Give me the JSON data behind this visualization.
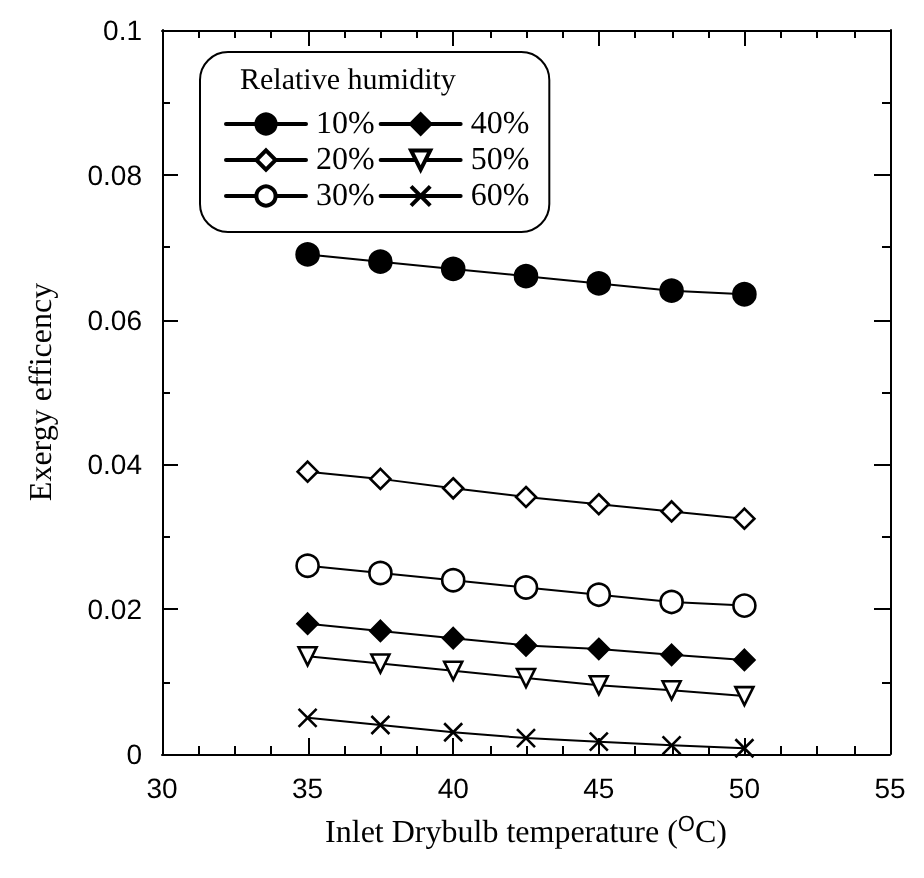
{
  "chart_data": {
    "type": "line",
    "xlabel": "Inlet Drybulb temperature ($^{O}$C)",
    "ylabel": "Exergy efficency",
    "legend_title": "Relative humidity",
    "x": [
      35,
      37.5,
      40,
      42.5,
      45,
      47.5,
      50
    ],
    "series": [
      {
        "name": "10%",
        "color": "#000000",
        "marker": "circle",
        "values": [
          0.069,
          0.068,
          0.067,
          0.066,
          0.065,
          0.064,
          0.0635
        ]
      },
      {
        "name": "20%",
        "color": "#000000",
        "marker": "diamond_open",
        "values": [
          0.039,
          0.038,
          0.0367,
          0.0355,
          0.0345,
          0.0335,
          0.0325
        ]
      },
      {
        "name": "30%",
        "color": "#000000",
        "marker": "circle_open",
        "values": [
          0.026,
          0.025,
          0.024,
          0.023,
          0.022,
          0.021,
          0.0205
        ]
      },
      {
        "name": "40%",
        "color": "#000000",
        "marker": "diamond",
        "values": [
          0.018,
          0.017,
          0.016,
          0.015,
          0.0145,
          0.0137,
          0.013
        ]
      },
      {
        "name": "50%",
        "color": "#000000",
        "marker": "triangle_down_open",
        "values": [
          0.0135,
          0.0125,
          0.0115,
          0.0105,
          0.0095,
          0.0088,
          0.008
        ]
      },
      {
        "name": "60%",
        "color": "#000000",
        "marker": "cross",
        "values": [
          0.005,
          0.004,
          0.003,
          0.0022,
          0.0017,
          0.0012,
          0.0008
        ]
      }
    ],
    "xlim": [
      30,
      55
    ],
    "xticks": [
      30,
      35,
      40,
      45,
      50,
      55
    ],
    "ylim": [
      0,
      0.1
    ],
    "yticks": [
      0,
      0.02,
      0.04,
      0.06,
      0.08,
      0.1
    ],
    "grid": false,
    "legend": "top left",
    "line_style": "solid"
  }
}
